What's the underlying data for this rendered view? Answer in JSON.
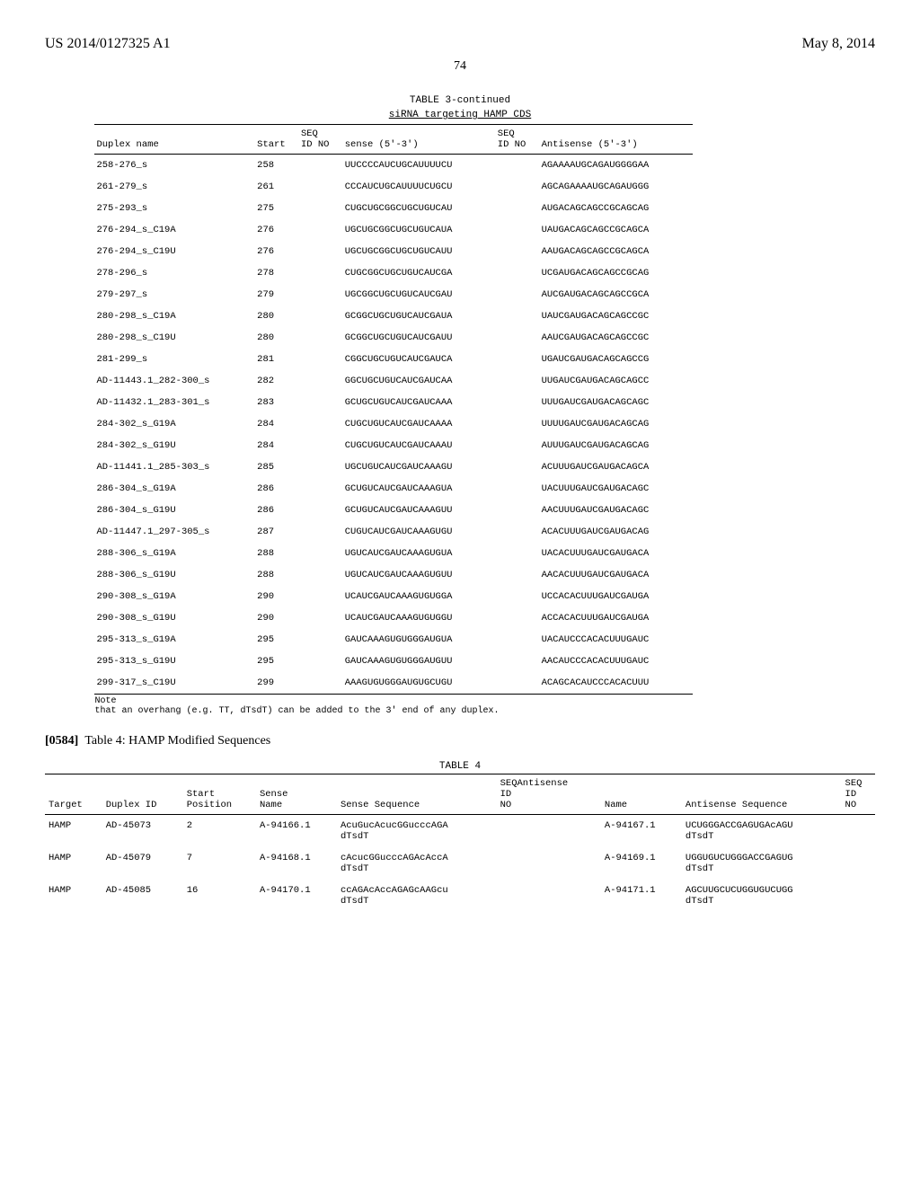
{
  "header": {
    "pub_no": "US 2014/0127325 A1",
    "date": "May 8, 2014",
    "page": "74"
  },
  "table3": {
    "title_line1": "TABLE 3-continued",
    "title_line2": "siRNA targeting HAMP CDS",
    "columns": {
      "c1": "Duplex name",
      "c2": "Start",
      "c3a": "SEQ",
      "c3b": "ID NO",
      "c4": "sense (5'-3')",
      "c5a": "SEQ",
      "c5b": "ID NO",
      "c6": "Antisense (5'-3')"
    },
    "rows": [
      {
        "name": "258-276_s",
        "start": "258",
        "sense": "UUCCCCAUCUGCAUUUUCU",
        "anti": "AGAAAAUGCAGAUGGGGAA"
      },
      {
        "name": "261-279_s",
        "start": "261",
        "sense": "CCCAUCUGCAUUUUCUGCU",
        "anti": "AGCAGAAAAUGCAGAUGGG"
      },
      {
        "name": "275-293_s",
        "start": "275",
        "sense": "CUGCUGCGGCUGCUGUCAU",
        "anti": "AUGACAGCAGCCGCAGCAG"
      },
      {
        "name": "276-294_s_C19A",
        "start": "276",
        "sense": "UGCUGCGGCUGCUGUCAUA",
        "anti": "UAUGACAGCAGCCGCAGCA"
      },
      {
        "name": "276-294_s_C19U",
        "start": "276",
        "sense": "UGCUGCGGCUGCUGUCAUU",
        "anti": "AAUGACAGCAGCCGCAGCA"
      },
      {
        "name": "278-296_s",
        "start": "278",
        "sense": "CUGCGGCUGCUGUCAUCGA",
        "anti": "UCGAUGACAGCAGCCGCAG"
      },
      {
        "name": "279-297_s",
        "start": "279",
        "sense": "UGCGGCUGCUGUCAUCGAU",
        "anti": "AUCGAUGACAGCAGCCGCA"
      },
      {
        "name": "280-298_s_C19A",
        "start": "280",
        "sense": "GCGGCUGCUGUCAUCGAUA",
        "anti": "UAUCGAUGACAGCAGCCGC"
      },
      {
        "name": "280-298_s_C19U",
        "start": "280",
        "sense": "GCGGCUGCUGUCAUCGAUU",
        "anti": "AAUCGAUGACAGCAGCCGC"
      },
      {
        "name": "281-299_s",
        "start": "281",
        "sense": "CGGCUGCUGUCAUCGAUCA",
        "anti": "UGAUCGAUGACAGCAGCCG"
      },
      {
        "name": "AD-11443.1_282-300_s",
        "start": "282",
        "sense": "GGCUGCUGUCAUCGAUCAA",
        "anti": "UUGAUCGAUGACAGCAGCC"
      },
      {
        "name": "AD-11432.1_283-301_s",
        "start": "283",
        "sense": "GCUGCUGUCAUCGAUCAAA",
        "anti": "UUUGAUCGAUGACAGCAGC"
      },
      {
        "name": "284-302_s_G19A",
        "start": "284",
        "sense": "CUGCUGUCAUCGAUCAAAA",
        "anti": "UUUUGAUCGAUGACAGCAG"
      },
      {
        "name": "284-302_s_G19U",
        "start": "284",
        "sense": "CUGCUGUCAUCGAUCAAAU",
        "anti": "AUUUGAUCGAUGACAGCAG"
      },
      {
        "name": "AD-11441.1_285-303_s",
        "start": "285",
        "sense": "UGCUGUCAUCGAUCAAAGU",
        "anti": "ACUUUGAUCGAUGACAGCA"
      },
      {
        "name": "286-304_s_G19A",
        "start": "286",
        "sense": "GCUGUCAUCGAUCAAAGUA",
        "anti": "UACUUUGAUCGAUGACAGC"
      },
      {
        "name": "286-304_s_G19U",
        "start": "286",
        "sense": "GCUGUCAUCGAUCAAAGUU",
        "anti": "AACUUUGAUCGAUGACAGC"
      },
      {
        "name": "AD-11447.1_297-305_s",
        "start": "287",
        "sense": "CUGUCAUCGAUCAAAGUGU",
        "anti": "ACACUUUGAUCGAUGACAG"
      },
      {
        "name": "288-306_s_G19A",
        "start": "288",
        "sense": "UGUCAUCGAUCAAAGUGUA",
        "anti": "UACACUUUGAUCGAUGACA"
      },
      {
        "name": "288-306_s_G19U",
        "start": "288",
        "sense": "UGUCAUCGAUCAAAGUGUU",
        "anti": "AACACUUUGAUCGAUGACA"
      },
      {
        "name": "290-308_s_G19A",
        "start": "290",
        "sense": "UCAUCGAUCAAAGUGUGGA",
        "anti": "UCCACACUUUGAUCGAUGA"
      },
      {
        "name": "290-308_s_G19U",
        "start": "290",
        "sense": "UCAUCGAUCAAAGUGUGGU",
        "anti": "ACCACACUUUGAUCGAUGA"
      },
      {
        "name": "295-313_s_G19A",
        "start": "295",
        "sense": "GAUCAAAGUGUGGGAUGUA",
        "anti": "UACAUCCCACACUUUGAUC"
      },
      {
        "name": "295-313_s_G19U",
        "start": "295",
        "sense": "GAUCAAAGUGUGGGAUGUU",
        "anti": "AACAUCCCACACUUUGAUC"
      },
      {
        "name": "299-317_s_C19U",
        "start": "299",
        "sense": "AAAGUGUGGGAUGUGCUGU",
        "anti": "ACAGCACAUCCCACACUUU"
      }
    ],
    "note_label": "Note",
    "note_text": "that an overhang (e.g. TT, dTsdT) can be added to the 3' end of any duplex."
  },
  "para": {
    "num": "[0584]",
    "text": "Table 4: HAMP Modified Sequences"
  },
  "table4": {
    "title": "TABLE 4",
    "columns": {
      "c1": "Target",
      "c2": "Duplex ID",
      "c3a": "Start",
      "c3b": "Position",
      "c4a": "Sense",
      "c4b": "Name",
      "c5": "Sense Sequence",
      "c6a": "SEQAntisense",
      "c6b": "ID",
      "c6c": "NO",
      "c7": "Name",
      "c8": "Antisense Sequence",
      "c9a": "SEQ",
      "c9b": "ID",
      "c9c": "NO"
    },
    "rows": [
      {
        "t": "HAMP",
        "d": "AD-45073",
        "sp": "2",
        "sn": "A-94166.1",
        "ss1": "AcuGucAcucGGucccAGA",
        "ss2": "dTsdT",
        "an": "A-94167.1",
        "as1": "UCUGGGACCGAGUGAcAGU",
        "as2": "dTsdT"
      },
      {
        "t": "HAMP",
        "d": "AD-45079",
        "sp": "7",
        "sn": "A-94168.1",
        "ss1": "cAcucGGucccAGAcAccA",
        "ss2": "dTsdT",
        "an": "A-94169.1",
        "as1": "UGGUGUCUGGGACCGAGUG",
        "as2": "dTsdT"
      },
      {
        "t": "HAMP",
        "d": "AD-45085",
        "sp": "16",
        "sn": "A-94170.1",
        "ss1": "ccAGAcAccAGAGcAAGcu",
        "ss2": "dTsdT",
        "an": "A-94171.1",
        "as1": "AGCUUGCUCUGGUGUCUGG",
        "as2": "dTsdT"
      }
    ]
  }
}
